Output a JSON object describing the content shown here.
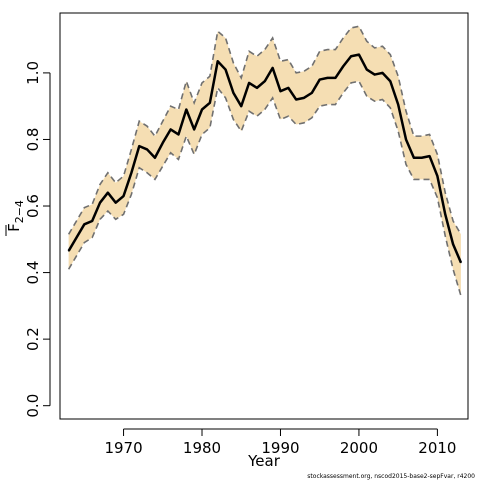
{
  "chart_data": {
    "type": "line",
    "xlabel": "Year",
    "ylabel_main": "F",
    "ylabel_sub": "2−4",
    "xlim": [
      1961.9,
      2013.9
    ],
    "ylim": [
      -0.04,
      1.18
    ],
    "x_ticks": [
      1970,
      1980,
      1990,
      2000,
      2010
    ],
    "x_tick_labels": [
      "1970",
      "1980",
      "1990",
      "2000",
      "2010"
    ],
    "y_ticks": [
      0.0,
      0.2,
      0.4,
      0.6,
      0.8,
      1.0
    ],
    "y_tick_labels": [
      "0.0",
      "0.2",
      "0.4",
      "0.6",
      "0.8",
      "1.0"
    ],
    "band_color": "#F5DEB3",
    "line_color": "#000000",
    "bound_color": "#707070",
    "grid": false,
    "series": [
      {
        "x": [
          1963,
          1964,
          1965,
          1966,
          1967,
          1968,
          1969,
          1970,
          1971,
          1972,
          1973,
          1974,
          1975,
          1976,
          1977,
          1978,
          1979,
          1980,
          1981,
          1982,
          1983,
          1984,
          1985,
          1986,
          1987,
          1988,
          1989,
          1990,
          1991,
          1992,
          1993,
          1994,
          1995,
          1996,
          1997,
          1998,
          1999,
          2000,
          2001,
          2002,
          2003,
          2004,
          2005,
          2006,
          2007,
          2008,
          2009,
          2010,
          2011,
          2012,
          2013
        ],
        "estimate": [
          0.465,
          0.505,
          0.545,
          0.555,
          0.61,
          0.64,
          0.61,
          0.63,
          0.7,
          0.78,
          0.77,
          0.745,
          0.79,
          0.83,
          0.815,
          0.89,
          0.83,
          0.89,
          0.91,
          1.035,
          1.01,
          0.94,
          0.9,
          0.97,
          0.955,
          0.975,
          1.015,
          0.945,
          0.955,
          0.92,
          0.925,
          0.94,
          0.98,
          0.985,
          0.985,
          1.02,
          1.05,
          1.055,
          1.01,
          0.995,
          1.0,
          0.975,
          0.905,
          0.8,
          0.745,
          0.745,
          0.75,
          0.69,
          0.575,
          0.485,
          0.43
        ],
        "upper": [
          0.515,
          0.555,
          0.595,
          0.605,
          0.665,
          0.7,
          0.67,
          0.69,
          0.77,
          0.855,
          0.84,
          0.81,
          0.855,
          0.9,
          0.89,
          0.975,
          0.91,
          0.97,
          0.99,
          1.125,
          1.105,
          1.03,
          0.985,
          1.065,
          1.05,
          1.07,
          1.105,
          1.035,
          1.04,
          1.0,
          1.005,
          1.02,
          1.065,
          1.07,
          1.07,
          1.105,
          1.135,
          1.14,
          1.095,
          1.075,
          1.08,
          1.055,
          0.99,
          0.885,
          0.81,
          0.81,
          0.815,
          0.755,
          0.64,
          0.555,
          0.515
        ],
        "lower": [
          0.41,
          0.45,
          0.49,
          0.505,
          0.56,
          0.585,
          0.56,
          0.575,
          0.635,
          0.715,
          0.7,
          0.68,
          0.72,
          0.76,
          0.74,
          0.81,
          0.755,
          0.815,
          0.835,
          0.955,
          0.925,
          0.86,
          0.825,
          0.885,
          0.87,
          0.89,
          0.925,
          0.86,
          0.87,
          0.845,
          0.85,
          0.865,
          0.9,
          0.905,
          0.905,
          0.94,
          0.97,
          0.975,
          0.93,
          0.915,
          0.92,
          0.895,
          0.825,
          0.725,
          0.68,
          0.68,
          0.68,
          0.625,
          0.51,
          0.41,
          0.33
        ]
      }
    ]
  },
  "footnote": "stockassessment.org, nscod2015-base2-sepFvar, r4200"
}
